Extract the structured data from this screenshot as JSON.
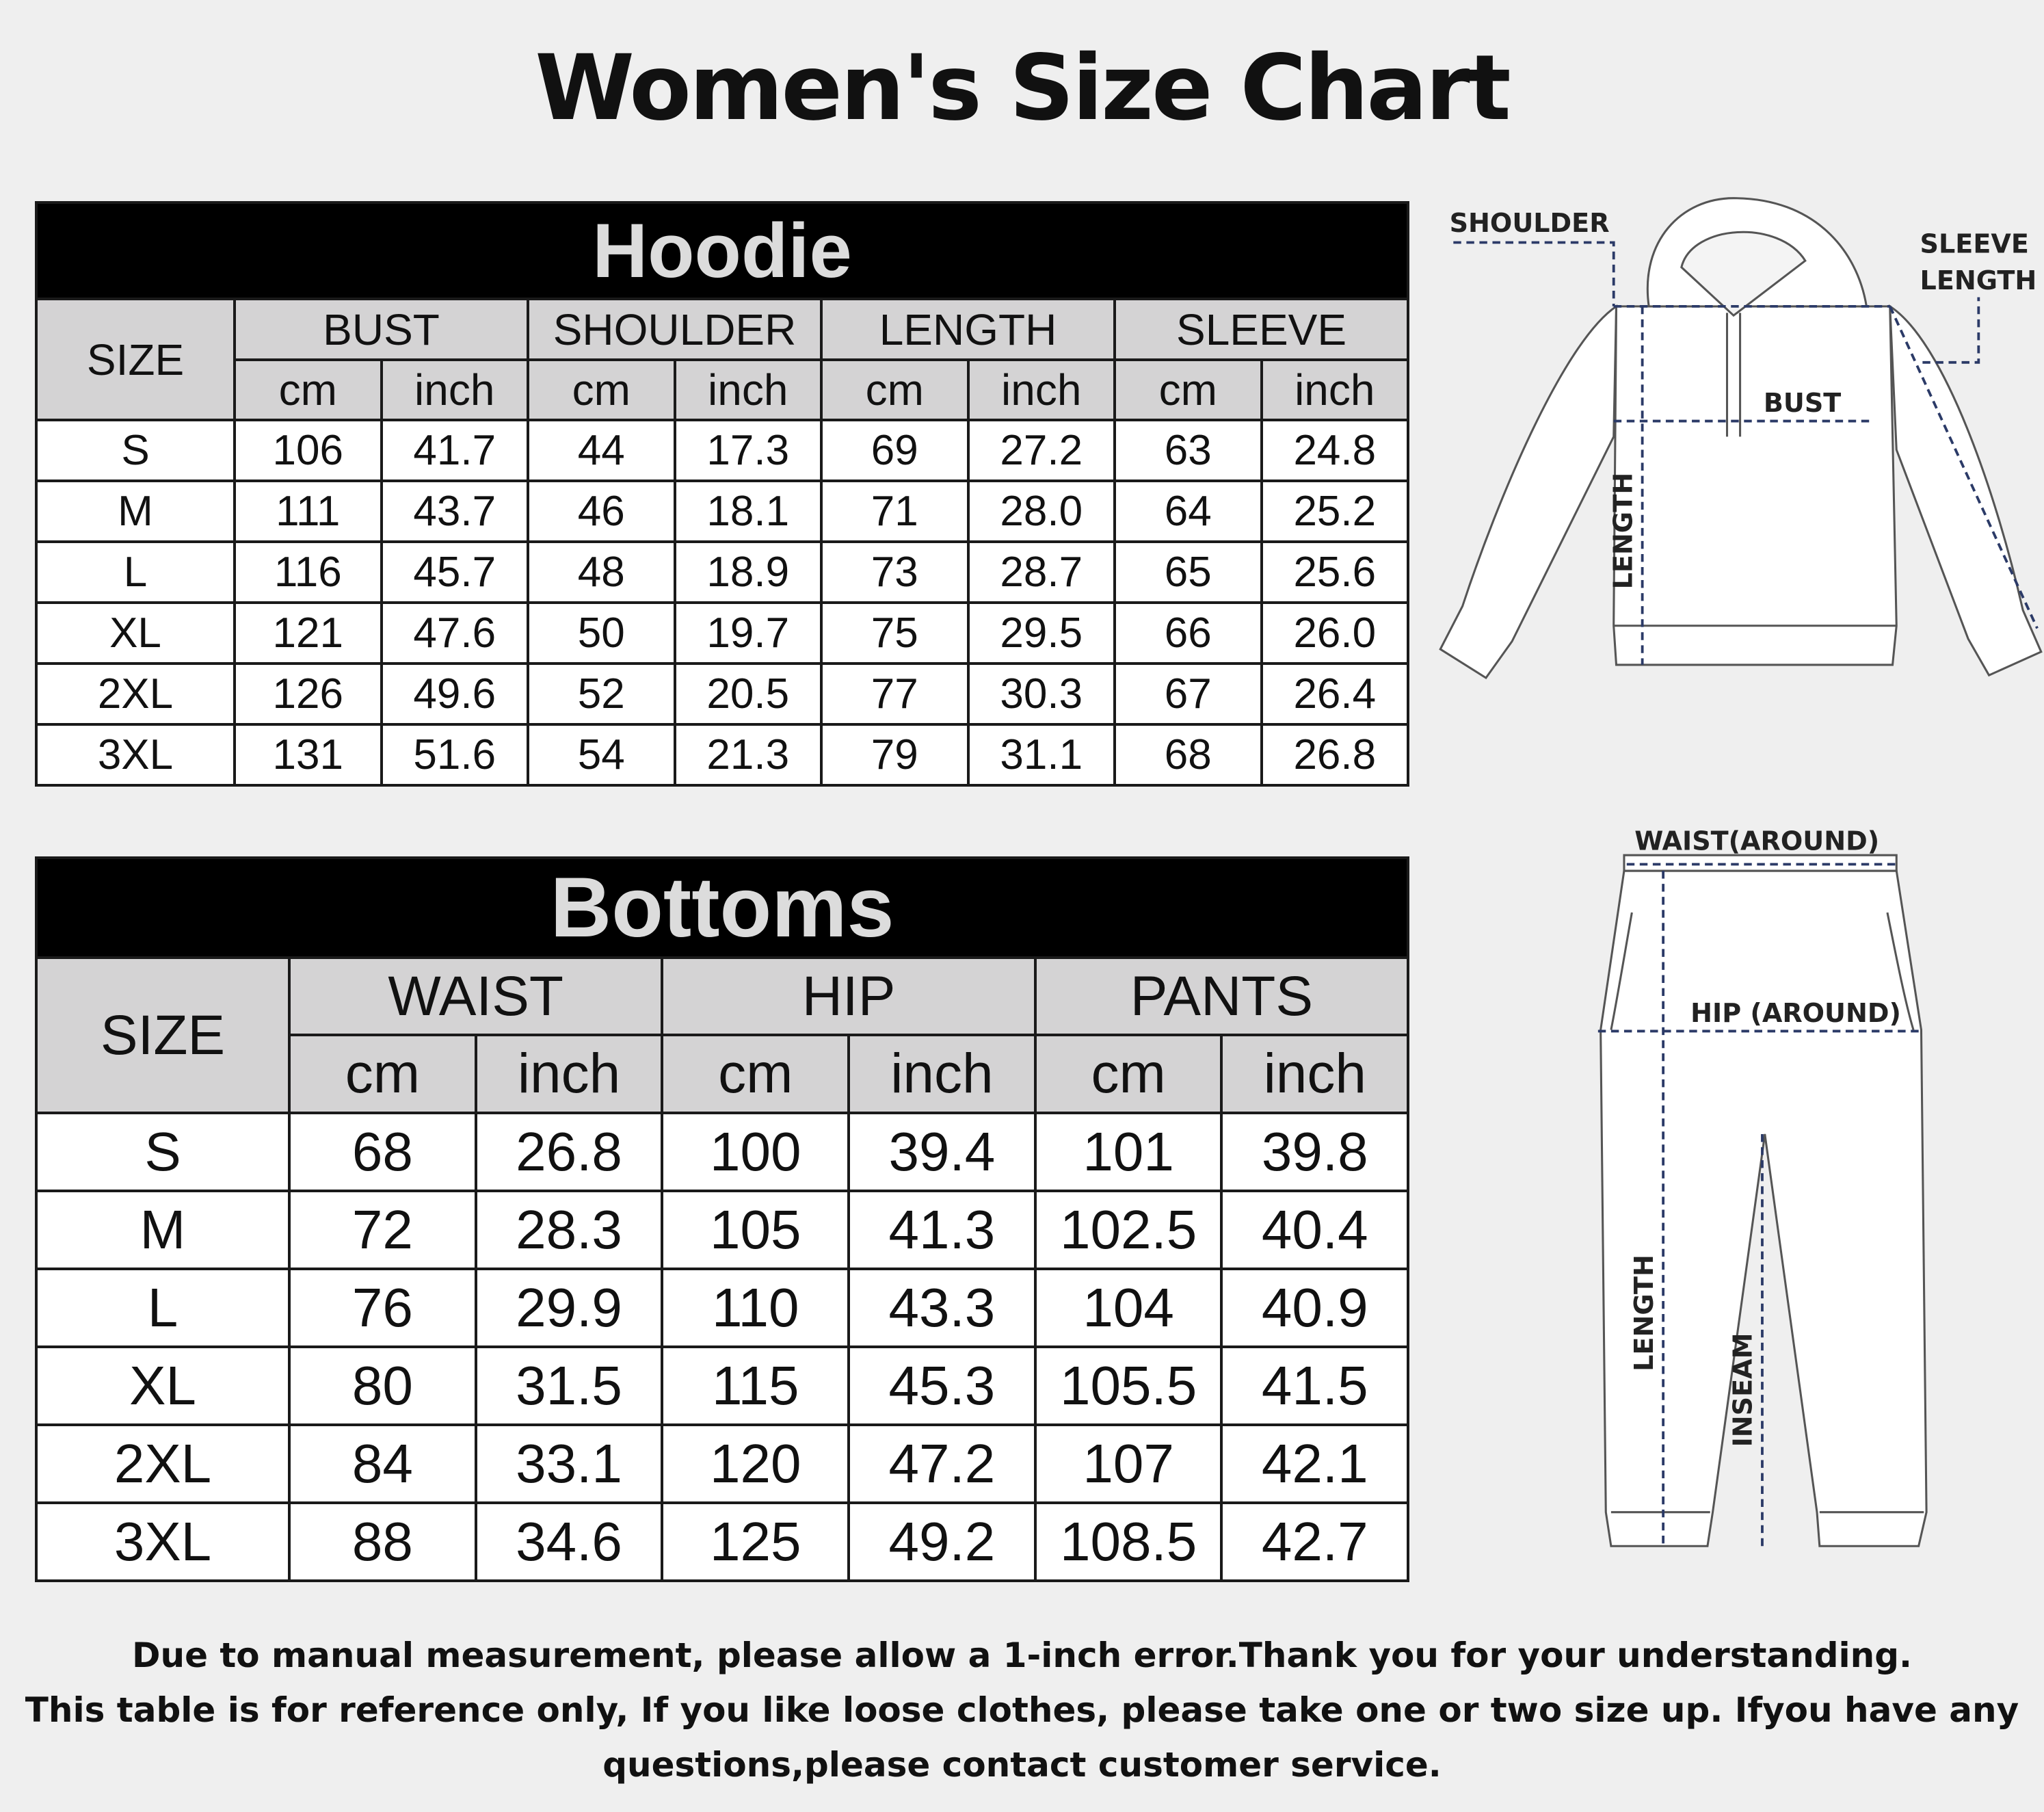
{
  "title": "Women's Size Chart",
  "hoodie": {
    "title": "Hoodie",
    "size_label": "SIZE",
    "groups": [
      "BUST",
      "SHOULDER",
      "LENGTH",
      "SLEEVE"
    ],
    "units": [
      "cm",
      "inch"
    ],
    "rows": [
      [
        "S",
        "106",
        "41.7",
        "44",
        "17.3",
        "69",
        "27.2",
        "63",
        "24.8"
      ],
      [
        "M",
        "111",
        "43.7",
        "46",
        "18.1",
        "71",
        "28.0",
        "64",
        "25.2"
      ],
      [
        "L",
        "116",
        "45.7",
        "48",
        "18.9",
        "73",
        "28.7",
        "65",
        "25.6"
      ],
      [
        "XL",
        "121",
        "47.6",
        "50",
        "19.7",
        "75",
        "29.5",
        "66",
        "26.0"
      ],
      [
        "2XL",
        "126",
        "49.6",
        "52",
        "20.5",
        "77",
        "30.3",
        "67",
        "26.4"
      ],
      [
        "3XL",
        "131",
        "51.6",
        "54",
        "21.3",
        "79",
        "31.1",
        "68",
        "26.8"
      ]
    ]
  },
  "bottoms": {
    "title": "Bottoms",
    "size_label": "SIZE",
    "groups": [
      "WAIST",
      "HIP",
      "PANTS"
    ],
    "units": [
      "cm",
      "inch"
    ],
    "rows": [
      [
        "S",
        "68",
        "26.8",
        "100",
        "39.4",
        "101",
        "39.8"
      ],
      [
        "M",
        "72",
        "28.3",
        "105",
        "41.3",
        "102.5",
        "40.4"
      ],
      [
        "L",
        "76",
        "29.9",
        "110",
        "43.3",
        "104",
        "40.9"
      ],
      [
        "XL",
        "80",
        "31.5",
        "115",
        "45.3",
        "105.5",
        "41.5"
      ],
      [
        "2XL",
        "84",
        "33.1",
        "120",
        "47.2",
        "107",
        "42.1"
      ],
      [
        "3XL",
        "88",
        "34.6",
        "125",
        "49.2",
        "108.5",
        "42.7"
      ]
    ]
  },
  "diagrams": {
    "hoodie": {
      "shoulder": "SHOULDER",
      "sleeve_1": "SLEEVE",
      "sleeve_2": "LENGTH",
      "bust": "BUST",
      "length": "LENGTH"
    },
    "pants": {
      "waist": "WAIST(AROUND)",
      "hip": "HIP (AROUND)",
      "length": "LENGTH",
      "inseam": "INSEAM"
    },
    "measure_line_color": "#2b3a67"
  },
  "footer": [
    "Due to manual measurement, please allow a 1-inch error.Thank you for your understanding.",
    "This table is for reference only, If you like loose clothes, please take one or two size up. Ifyou have any",
    "questions,please contact customer service."
  ]
}
